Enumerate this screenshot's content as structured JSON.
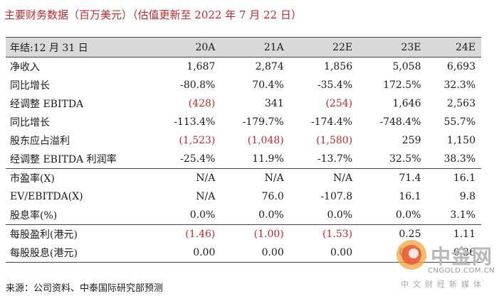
{
  "title": "主要财务数据（百万美元）（估值更新至 2022 年 7 月 22 日）",
  "table": {
    "header": {
      "label": "年结:12 月 31 日",
      "cols": [
        "20A",
        "21A",
        "22E",
        "23E",
        "24E"
      ]
    },
    "rows": [
      {
        "label": "净收入",
        "values": [
          "1,687",
          "2,874",
          "1,856",
          "5,058",
          "6,693"
        ],
        "neg": [
          false,
          false,
          false,
          false,
          false
        ]
      },
      {
        "label": "同比增长",
        "values": [
          "-80.8%",
          "70.4%",
          "-35.4%",
          "172.5%",
          "32.3%"
        ],
        "neg": [
          false,
          false,
          false,
          false,
          false
        ]
      },
      {
        "label": "经调整 EBITDA",
        "values": [
          "(428)",
          "341",
          "(254)",
          "1,646",
          "2,563"
        ],
        "neg": [
          true,
          false,
          true,
          false,
          false
        ]
      },
      {
        "label": "同比增长",
        "values": [
          "-113.4%",
          "-179.7%",
          "-174.4%",
          "-748.4%",
          "55.7%"
        ],
        "neg": [
          false,
          false,
          false,
          false,
          false
        ]
      },
      {
        "label": "股东应占溢利",
        "values": [
          "(1,523)",
          "(1,048)",
          "(1,580)",
          "259",
          "1,150"
        ],
        "neg": [
          true,
          true,
          true,
          false,
          false
        ]
      },
      {
        "label": "经调整 EBITDA 利润率",
        "values": [
          "-25.4%",
          "11.9%",
          "-13.7%",
          "32.5%",
          "38.3%"
        ],
        "neg": [
          false,
          false,
          false,
          false,
          false
        ]
      },
      {
        "label": "市盈率(X)",
        "values": [
          "N/A",
          "N/A",
          "N/A",
          "71.4",
          "16.1"
        ],
        "neg": [
          false,
          false,
          false,
          false,
          false
        ]
      },
      {
        "label": "EV/EBITDA(X)",
        "values": [
          "N/A",
          "76.0",
          "-107.8",
          "16.1",
          "9.8"
        ],
        "neg": [
          false,
          false,
          false,
          false,
          false
        ]
      },
      {
        "label": "股息率(%)",
        "values": [
          "0.0%",
          "0.0%",
          "0.0%",
          "0.0%",
          "3.1%"
        ],
        "neg": [
          false,
          false,
          false,
          false,
          false
        ]
      },
      {
        "label": "每股盈利(港元)",
        "values": [
          "(1.46)",
          "(1.00)",
          "(1.53)",
          "0.25",
          "1.11"
        ],
        "neg": [
          true,
          true,
          true,
          false,
          false
        ]
      },
      {
        "label": "每股股息(港元)",
        "values": [
          "0.00",
          "0.00",
          "0.00",
          "0.00",
          "0.36"
        ],
        "neg": [
          false,
          false,
          false,
          false,
          false
        ]
      }
    ]
  },
  "source": "来源：公司资料、中泰国际研究部预测",
  "watermark": {
    "name": "中金网",
    "url": "CNGOLD.COM.CN",
    "tagline": "中文财经新媒体"
  },
  "colors": {
    "accent": "#c0282d",
    "header_bg": "#d9d9d9"
  }
}
